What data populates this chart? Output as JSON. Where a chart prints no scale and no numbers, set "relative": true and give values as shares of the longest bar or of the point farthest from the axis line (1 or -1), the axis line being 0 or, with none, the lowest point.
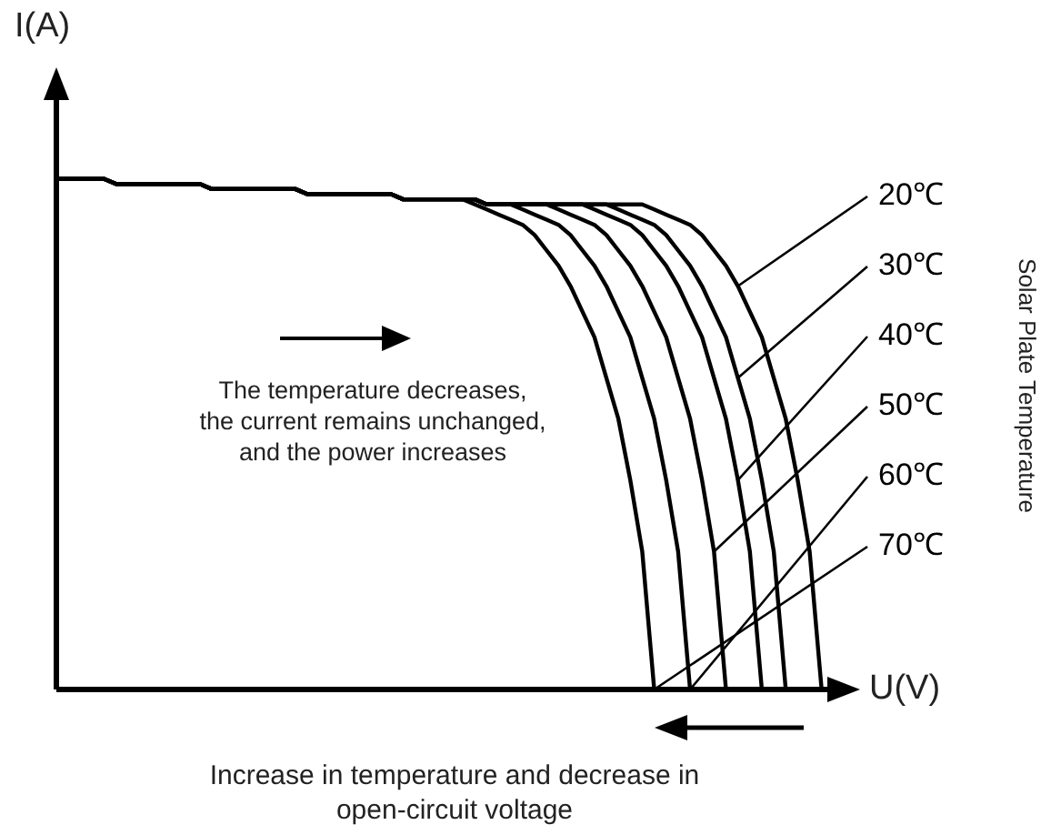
{
  "chart_data": {
    "type": "line",
    "relative": true,
    "xlabel": "U(V)",
    "ylabel": "I(A)",
    "legend_title": "Solar Plate Temperature",
    "legend": false,
    "marker": "none",
    "line_style": "solid",
    "annotations": [
      "The temperature decreases,\nthe current remains unchanged,\nand the power increases",
      "Increase in temperature and decrease in\nopen-circuit voltage"
    ],
    "categories": [
      null,
      null,
      null,
      null,
      null,
      null,
      null,
      null,
      null,
      null,
      null,
      null,
      null,
      null,
      null,
      null,
      null,
      null,
      null,
      null,
      null,
      null,
      null,
      null,
      null,
      null,
      null,
      null,
      null,
      null,
      null,
      null,
      null,
      null,
      null,
      null,
      null,
      null,
      null,
      null,
      null,
      null,
      null,
      null,
      null,
      null,
      null,
      null,
      null,
      null,
      null,
      null,
      null,
      null,
      null,
      null,
      null,
      null,
      null,
      null,
      null,
      null,
      null,
      null,
      null,
      null,
      null
    ],
    "series": [
      {
        "name": "20℃",
        "color": "#000000",
        "values": [
          1,
          1,
          1,
          1,
          1,
          0.99,
          0.99,
          0.99,
          0.99,
          0.99,
          0.99,
          0.99,
          0.99,
          0.98,
          0.98,
          0.98,
          0.98,
          0.98,
          0.98,
          0.98,
          0.98,
          0.97,
          0.97,
          0.97,
          0.97,
          0.97,
          0.97,
          0.97,
          0.97,
          0.96,
          0.96,
          0.96,
          0.96,
          0.96,
          0.96,
          0.96,
          0.95,
          0.95,
          0.95,
          0.95,
          0.95,
          0.95,
          0.95,
          0.95,
          0.95,
          0.95,
          0.95,
          0.95,
          0.95,
          0.95,
          0.94,
          0.93,
          0.92,
          0.91,
          0.89,
          0.86,
          0.83,
          0.79,
          0.74,
          0.69,
          0.61,
          0.53,
          0.41,
          0.27,
          0,
          null,
          null
        ]
      },
      {
        "name": "30℃",
        "color": "#000000",
        "values": [
          1,
          1,
          1,
          1,
          1,
          0.99,
          0.99,
          0.99,
          0.99,
          0.99,
          0.99,
          0.99,
          0.99,
          0.98,
          0.98,
          0.98,
          0.98,
          0.98,
          0.98,
          0.98,
          0.98,
          0.97,
          0.97,
          0.97,
          0.97,
          0.97,
          0.97,
          0.97,
          0.97,
          0.96,
          0.96,
          0.96,
          0.96,
          0.96,
          0.96,
          0.96,
          0.95,
          0.95,
          0.95,
          0.95,
          0.95,
          0.95,
          0.95,
          0.95,
          0.95,
          0.95,
          0.95,
          0.94,
          0.93,
          0.92,
          0.91,
          0.89,
          0.86,
          0.83,
          0.79,
          0.74,
          0.69,
          0.61,
          0.53,
          0.41,
          0.27,
          0,
          null,
          null,
          null,
          null,
          null
        ]
      },
      {
        "name": "40℃",
        "color": "#000000",
        "values": [
          1,
          1,
          1,
          1,
          1,
          0.99,
          0.99,
          0.99,
          0.99,
          0.99,
          0.99,
          0.99,
          0.99,
          0.98,
          0.98,
          0.98,
          0.98,
          0.98,
          0.98,
          0.98,
          0.98,
          0.97,
          0.97,
          0.97,
          0.97,
          0.97,
          0.97,
          0.97,
          0.97,
          0.96,
          0.96,
          0.96,
          0.96,
          0.96,
          0.96,
          0.96,
          0.95,
          0.95,
          0.95,
          0.95,
          0.95,
          0.95,
          0.95,
          0.95,
          0.95,
          0.94,
          0.93,
          0.92,
          0.91,
          0.89,
          0.86,
          0.83,
          0.79,
          0.74,
          0.69,
          0.61,
          0.53,
          0.41,
          0.27,
          0,
          null,
          null,
          null,
          null,
          null,
          null,
          null
        ]
      },
      {
        "name": "50℃",
        "color": "#000000",
        "values": [
          1,
          1,
          1,
          1,
          1,
          0.99,
          0.99,
          0.99,
          0.99,
          0.99,
          0.99,
          0.99,
          0.99,
          0.98,
          0.98,
          0.98,
          0.98,
          0.98,
          0.98,
          0.98,
          0.98,
          0.97,
          0.97,
          0.97,
          0.97,
          0.97,
          0.97,
          0.97,
          0.97,
          0.96,
          0.96,
          0.96,
          0.96,
          0.96,
          0.96,
          0.96,
          0.95,
          0.95,
          0.95,
          0.95,
          0.95,
          0.95,
          0.94,
          0.93,
          0.92,
          0.91,
          0.89,
          0.86,
          0.83,
          0.79,
          0.74,
          0.69,
          0.61,
          0.53,
          0.41,
          0.27,
          0,
          null,
          null,
          null,
          null,
          null,
          null,
          null,
          null,
          null,
          null
        ]
      },
      {
        "name": "60℃",
        "color": "#000000",
        "values": [
          1,
          1,
          1,
          1,
          1,
          0.99,
          0.99,
          0.99,
          0.99,
          0.99,
          0.99,
          0.99,
          0.99,
          0.98,
          0.98,
          0.98,
          0.98,
          0.98,
          0.98,
          0.98,
          0.98,
          0.97,
          0.97,
          0.97,
          0.97,
          0.97,
          0.97,
          0.97,
          0.97,
          0.96,
          0.96,
          0.96,
          0.96,
          0.96,
          0.96,
          0.96,
          0.95,
          0.95,
          0.95,
          0.94,
          0.93,
          0.92,
          0.91,
          0.89,
          0.86,
          0.83,
          0.79,
          0.74,
          0.69,
          0.61,
          0.53,
          0.41,
          0.27,
          0,
          null,
          null,
          null,
          null,
          null,
          null,
          null,
          null,
          null,
          null,
          null,
          null,
          null
        ]
      },
      {
        "name": "70℃",
        "color": "#000000",
        "values": [
          1,
          1,
          1,
          1,
          1,
          0.99,
          0.99,
          0.99,
          0.99,
          0.99,
          0.99,
          0.99,
          0.99,
          0.98,
          0.98,
          0.98,
          0.98,
          0.98,
          0.98,
          0.98,
          0.98,
          0.97,
          0.97,
          0.97,
          0.97,
          0.97,
          0.97,
          0.97,
          0.97,
          0.96,
          0.96,
          0.96,
          0.96,
          0.96,
          0.96,
          0.95,
          0.94,
          0.93,
          0.92,
          0.91,
          0.89,
          0.86,
          0.83,
          0.79,
          0.74,
          0.69,
          0.61,
          0.53,
          0.41,
          0.27,
          0,
          null,
          null,
          null,
          null,
          null,
          null,
          null,
          null,
          null,
          null,
          null,
          null,
          null,
          null,
          null,
          null
        ]
      }
    ]
  }
}
